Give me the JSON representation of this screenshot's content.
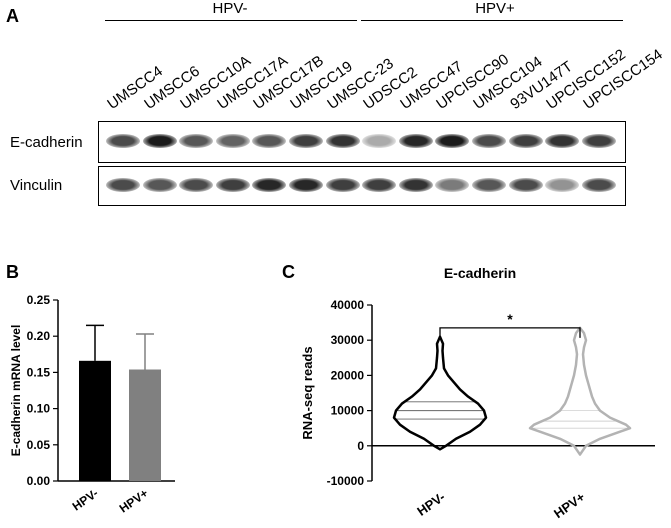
{
  "panel_a": {
    "letter": "A",
    "group_left": "HPV-",
    "group_right": "HPV+",
    "cell_lines": [
      "UMSCC4",
      "UMSCC6",
      "UMSCC10A",
      "UMSCC17A",
      "UMSCC17B",
      "UMSCC19",
      "UMSCC-23",
      "UDSCC2",
      "UMSCC47",
      "UPCISCC90",
      "UMSCC104",
      "93VU147T",
      "UPCISCC152",
      "UPCISCC154"
    ],
    "row1_label": "E-cadherin",
    "row2_label": "Vinculin",
    "ecad_intensity": [
      0.75,
      0.95,
      0.7,
      0.65,
      0.7,
      0.8,
      0.85,
      0.35,
      0.9,
      0.95,
      0.75,
      0.8,
      0.85,
      0.8
    ],
    "vinc_intensity": [
      0.75,
      0.7,
      0.75,
      0.8,
      0.9,
      0.9,
      0.8,
      0.8,
      0.85,
      0.55,
      0.7,
      0.75,
      0.45,
      0.75
    ]
  },
  "panel_b": {
    "letter": "B"
  },
  "panel_c": {
    "letter": "C"
  },
  "chart_data": [
    {
      "type": "bar",
      "categories": [
        "HPV-",
        "HPV+"
      ],
      "values": [
        0.166,
        0.154
      ],
      "error": [
        0.049,
        0.049
      ],
      "colors": [
        "#000000",
        "#808080"
      ],
      "title": "",
      "xlabel": "",
      "ylabel": "E-cadherin mRNA level",
      "ylim": [
        0,
        0.25
      ],
      "yticks": [
        "0.00",
        "0.05",
        "0.10",
        "0.15",
        "0.20",
        "0.25"
      ]
    },
    {
      "type": "violin",
      "categories": [
        "HPV-",
        "HPV+"
      ],
      "colors": [
        "#000000",
        "#b3b3b3"
      ],
      "title": "E-cadherin",
      "xlabel": "",
      "ylabel": "RNA-seq reads",
      "ylim": [
        -10000,
        40000
      ],
      "yticks": [
        "-10000",
        "0",
        "10000",
        "20000",
        "30000",
        "40000"
      ],
      "medians": [
        10000,
        7000
      ],
      "quartiles": [
        [
          7600,
          12500
        ],
        [
          5000,
          10000
        ]
      ],
      "ranges": [
        [
          -1000,
          31000
        ],
        [
          -2500,
          33500
        ]
      ],
      "significance": "*"
    }
  ]
}
